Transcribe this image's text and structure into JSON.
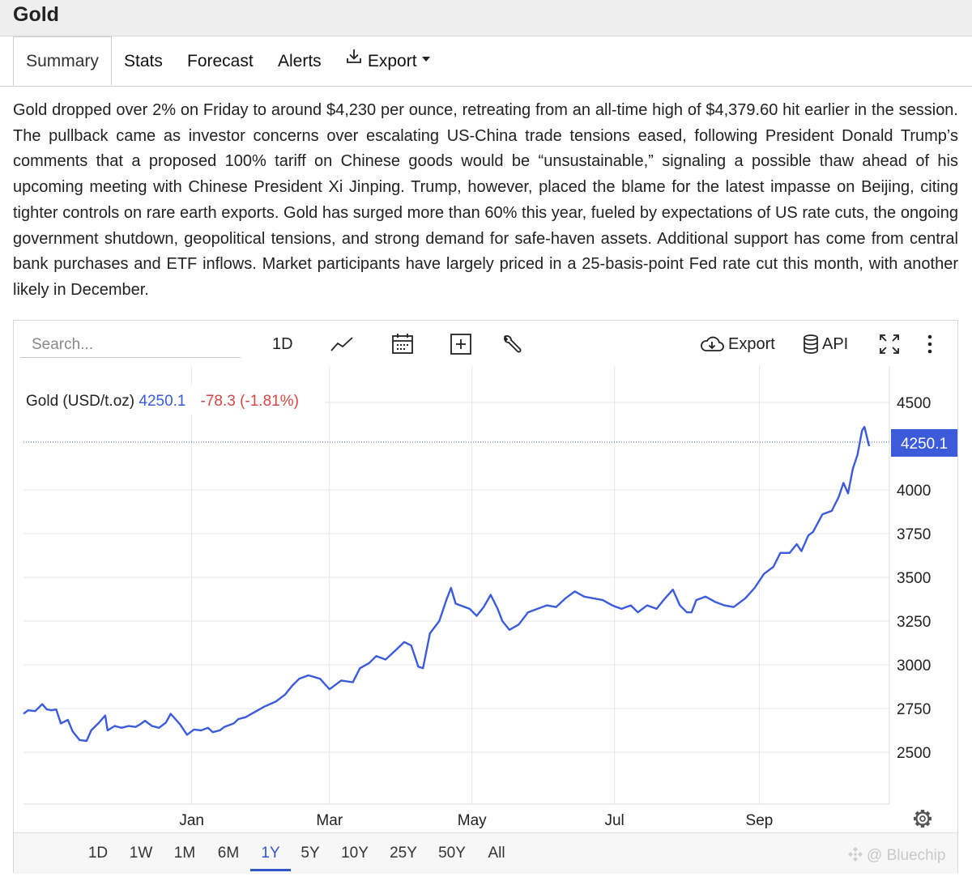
{
  "page": {
    "title": "Gold"
  },
  "tabs": [
    {
      "label": "Summary",
      "active": true
    },
    {
      "label": "Stats"
    },
    {
      "label": "Forecast"
    },
    {
      "label": "Alerts"
    },
    {
      "label": "Export",
      "icon": "download-icon",
      "dropdown": true
    }
  ],
  "article": {
    "text": "Gold dropped over 2% on Friday to around $4,230 per ounce, retreating from an all-time high of $4,379.60 hit earlier in the session. The pullback came as investor concerns over escalating US-China trade tensions eased, following President Donald Trump’s comments that a proposed 100% tariff on Chinese goods would be “unsustainable,” signaling a possible thaw ahead of his upcoming meeting with Chinese President Xi Jinping. Trump, however, placed the blame for the latest impasse on Beijing, citing tighter controls on rare earth exports. Gold has surged more than 60% this year, fueled by expectations of US rate cuts, the ongoing government shutdown, geopolitical tensions, and strong demand for safe-haven assets. Additional support has come from central bank purchases and ETF inflows. Market participants have largely priced in a 25-basis-point Fed rate cut this month, with another likely in December."
  },
  "chart_toolbar": {
    "search_placeholder": "Search...",
    "interval_label": "1D",
    "export_label": "Export",
    "api_label": "API",
    "icons": [
      "line-chart-icon",
      "calendar-icon",
      "add-indicator-icon",
      "wrench-icon",
      "cloud-download-icon",
      "database-icon",
      "fullscreen-icon",
      "more-icon"
    ]
  },
  "legend": {
    "name": "Gold (USD/t.oz)",
    "last_value": "4250.1",
    "change": "-78.3 (-1.81%)"
  },
  "colors": {
    "line": "#3b5bdb",
    "negative": "#d64545",
    "price_tag_bg": "#3b5bdb",
    "active_range": "#3355cc"
  },
  "chart_data": {
    "type": "line",
    "title": "Gold (USD/t.oz)",
    "xlabel": "",
    "ylabel": "",
    "ylim": [
      2250,
      4650
    ],
    "yticks": [
      2500,
      2750,
      3000,
      3250,
      3500,
      3750,
      4000,
      4500
    ],
    "xticks": [
      {
        "label": "Jan",
        "x": "2025-01-01"
      },
      {
        "label": "Mar",
        "x": "2025-03-01"
      },
      {
        "label": "May",
        "x": "2025-05-01"
      },
      {
        "label": "Jul",
        "x": "2025-07-01"
      },
      {
        "label": "Sep",
        "x": "2025-09-01"
      }
    ],
    "last_price_label": "4250.1",
    "last_price": 4250.1,
    "grid": true,
    "series": [
      {
        "name": "Gold (USD/t.oz)",
        "points": [
          [
            "2024-10-21",
            2720
          ],
          [
            "2024-10-23",
            2740
          ],
          [
            "2024-10-26",
            2735
          ],
          [
            "2024-10-29",
            2775
          ],
          [
            "2024-10-31",
            2745
          ],
          [
            "2024-11-02",
            2740
          ],
          [
            "2024-11-04",
            2745
          ],
          [
            "2024-11-06",
            2665
          ],
          [
            "2024-11-09",
            2685
          ],
          [
            "2024-11-11",
            2620
          ],
          [
            "2024-11-14",
            2570
          ],
          [
            "2024-11-17",
            2565
          ],
          [
            "2024-11-19",
            2625
          ],
          [
            "2024-11-22",
            2665
          ],
          [
            "2024-11-25",
            2710
          ],
          [
            "2024-11-26",
            2625
          ],
          [
            "2024-11-29",
            2650
          ],
          [
            "2024-12-02",
            2640
          ],
          [
            "2024-12-05",
            2650
          ],
          [
            "2024-12-08",
            2645
          ],
          [
            "2024-12-10",
            2660
          ],
          [
            "2024-12-12",
            2680
          ],
          [
            "2024-12-15",
            2650
          ],
          [
            "2024-12-18",
            2640
          ],
          [
            "2024-12-21",
            2670
          ],
          [
            "2024-12-23",
            2720
          ],
          [
            "2024-12-27",
            2660
          ],
          [
            "2024-12-30",
            2600
          ],
          [
            "2025-01-02",
            2630
          ],
          [
            "2025-01-05",
            2625
          ],
          [
            "2025-01-08",
            2640
          ],
          [
            "2025-01-10",
            2615
          ],
          [
            "2025-01-13",
            2625
          ],
          [
            "2025-01-15",
            2645
          ],
          [
            "2025-01-19",
            2665
          ],
          [
            "2025-01-21",
            2690
          ],
          [
            "2025-01-24",
            2700
          ],
          [
            "2025-01-28",
            2730
          ],
          [
            "2025-02-01",
            2760
          ],
          [
            "2025-02-06",
            2790
          ],
          [
            "2025-02-10",
            2830
          ],
          [
            "2025-02-13",
            2880
          ],
          [
            "2025-02-16",
            2920
          ],
          [
            "2025-02-20",
            2940
          ],
          [
            "2025-02-25",
            2920
          ],
          [
            "2025-02-27",
            2890
          ],
          [
            "2025-03-01",
            2860
          ],
          [
            "2025-03-06",
            2910
          ],
          [
            "2025-03-11",
            2900
          ],
          [
            "2025-03-14",
            2980
          ],
          [
            "2025-03-18",
            3010
          ],
          [
            "2025-03-21",
            3050
          ],
          [
            "2025-03-25",
            3030
          ],
          [
            "2025-03-29",
            3080
          ],
          [
            "2025-04-02",
            3130
          ],
          [
            "2025-04-05",
            3110
          ],
          [
            "2025-04-08",
            2990
          ],
          [
            "2025-04-10",
            2980
          ],
          [
            "2025-04-13",
            3180
          ],
          [
            "2025-04-17",
            3250
          ],
          [
            "2025-04-20",
            3370
          ],
          [
            "2025-04-22",
            3440
          ],
          [
            "2025-04-24",
            3350
          ],
          [
            "2025-04-26",
            3340
          ],
          [
            "2025-04-30",
            3320
          ],
          [
            "2025-05-03",
            3280
          ],
          [
            "2025-05-06",
            3330
          ],
          [
            "2025-05-09",
            3400
          ],
          [
            "2025-05-12",
            3320
          ],
          [
            "2025-05-14",
            3250
          ],
          [
            "2025-05-17",
            3200
          ],
          [
            "2025-05-21",
            3230
          ],
          [
            "2025-05-25",
            3300
          ],
          [
            "2025-05-29",
            3320
          ],
          [
            "2025-06-02",
            3340
          ],
          [
            "2025-06-06",
            3330
          ],
          [
            "2025-06-10",
            3380
          ],
          [
            "2025-06-14",
            3420
          ],
          [
            "2025-06-18",
            3390
          ],
          [
            "2025-06-22",
            3380
          ],
          [
            "2025-06-26",
            3370
          ],
          [
            "2025-06-30",
            3340
          ],
          [
            "2025-07-04",
            3320
          ],
          [
            "2025-07-08",
            3340
          ],
          [
            "2025-07-11",
            3300
          ],
          [
            "2025-07-15",
            3340
          ],
          [
            "2025-07-19",
            3320
          ],
          [
            "2025-07-22",
            3370
          ],
          [
            "2025-07-26",
            3430
          ],
          [
            "2025-07-29",
            3340
          ],
          [
            "2025-08-01",
            3300
          ],
          [
            "2025-08-03",
            3300
          ],
          [
            "2025-08-05",
            3370
          ],
          [
            "2025-08-09",
            3390
          ],
          [
            "2025-08-13",
            3360
          ],
          [
            "2025-08-17",
            3340
          ],
          [
            "2025-08-21",
            3330
          ],
          [
            "2025-08-26",
            3380
          ],
          [
            "2025-08-30",
            3440
          ],
          [
            "2025-09-03",
            3520
          ],
          [
            "2025-09-07",
            3560
          ],
          [
            "2025-09-10",
            3640
          ],
          [
            "2025-09-14",
            3640
          ],
          [
            "2025-09-17",
            3690
          ],
          [
            "2025-09-19",
            3650
          ],
          [
            "2025-09-22",
            3740
          ],
          [
            "2025-09-24",
            3760
          ],
          [
            "2025-09-28",
            3860
          ],
          [
            "2025-10-02",
            3880
          ],
          [
            "2025-10-05",
            3960
          ],
          [
            "2025-10-07",
            4040
          ],
          [
            "2025-10-09",
            3980
          ],
          [
            "2025-10-11",
            4120
          ],
          [
            "2025-10-13",
            4200
          ],
          [
            "2025-10-15",
            4340
          ],
          [
            "2025-10-16",
            4360
          ],
          [
            "2025-10-18",
            4250
          ]
        ]
      }
    ]
  },
  "range_buttons": [
    {
      "label": "1D"
    },
    {
      "label": "1W"
    },
    {
      "label": "1M"
    },
    {
      "label": "6M"
    },
    {
      "label": "1Y",
      "active": true
    },
    {
      "label": "5Y"
    },
    {
      "label": "10Y"
    },
    {
      "label": "25Y"
    },
    {
      "label": "50Y"
    },
    {
      "label": "All"
    }
  ],
  "watermark": {
    "text": "@ Bluechip"
  }
}
